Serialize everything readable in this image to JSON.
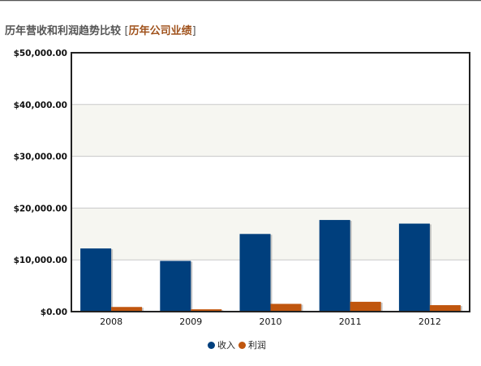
{
  "header": {
    "title": "历年营收和利润趋势比较",
    "bracket_open": "[",
    "link_label": "历年公司业绩",
    "bracket_close": "]"
  },
  "colors": {
    "revenue": "#003f7d",
    "profit": "#c0560e",
    "band": "#f6f6f1",
    "gridline": "#c9c9c9",
    "frame": "#222222",
    "link": "#a0521c"
  },
  "chart_data": {
    "type": "bar",
    "categories": [
      "2008",
      "2009",
      "2010",
      "2011",
      "2012"
    ],
    "series": [
      {
        "name": "收入",
        "values": [
          12200,
          9800,
          15000,
          17700,
          17000
        ]
      },
      {
        "name": "利润",
        "values": [
          900,
          450,
          1500,
          1900,
          1250
        ]
      }
    ],
    "ylim": [
      0,
      50000
    ],
    "yticks": [
      0,
      10000,
      20000,
      30000,
      40000,
      50000
    ],
    "ytick_labels": [
      "$0.00",
      "$10,000.00",
      "$20,000.00",
      "$30,000.00",
      "$40,000.00",
      "$50,000.00"
    ],
    "grid": true,
    "legend_position": "bottom-center",
    "title": "",
    "xlabel": "",
    "ylabel": ""
  }
}
